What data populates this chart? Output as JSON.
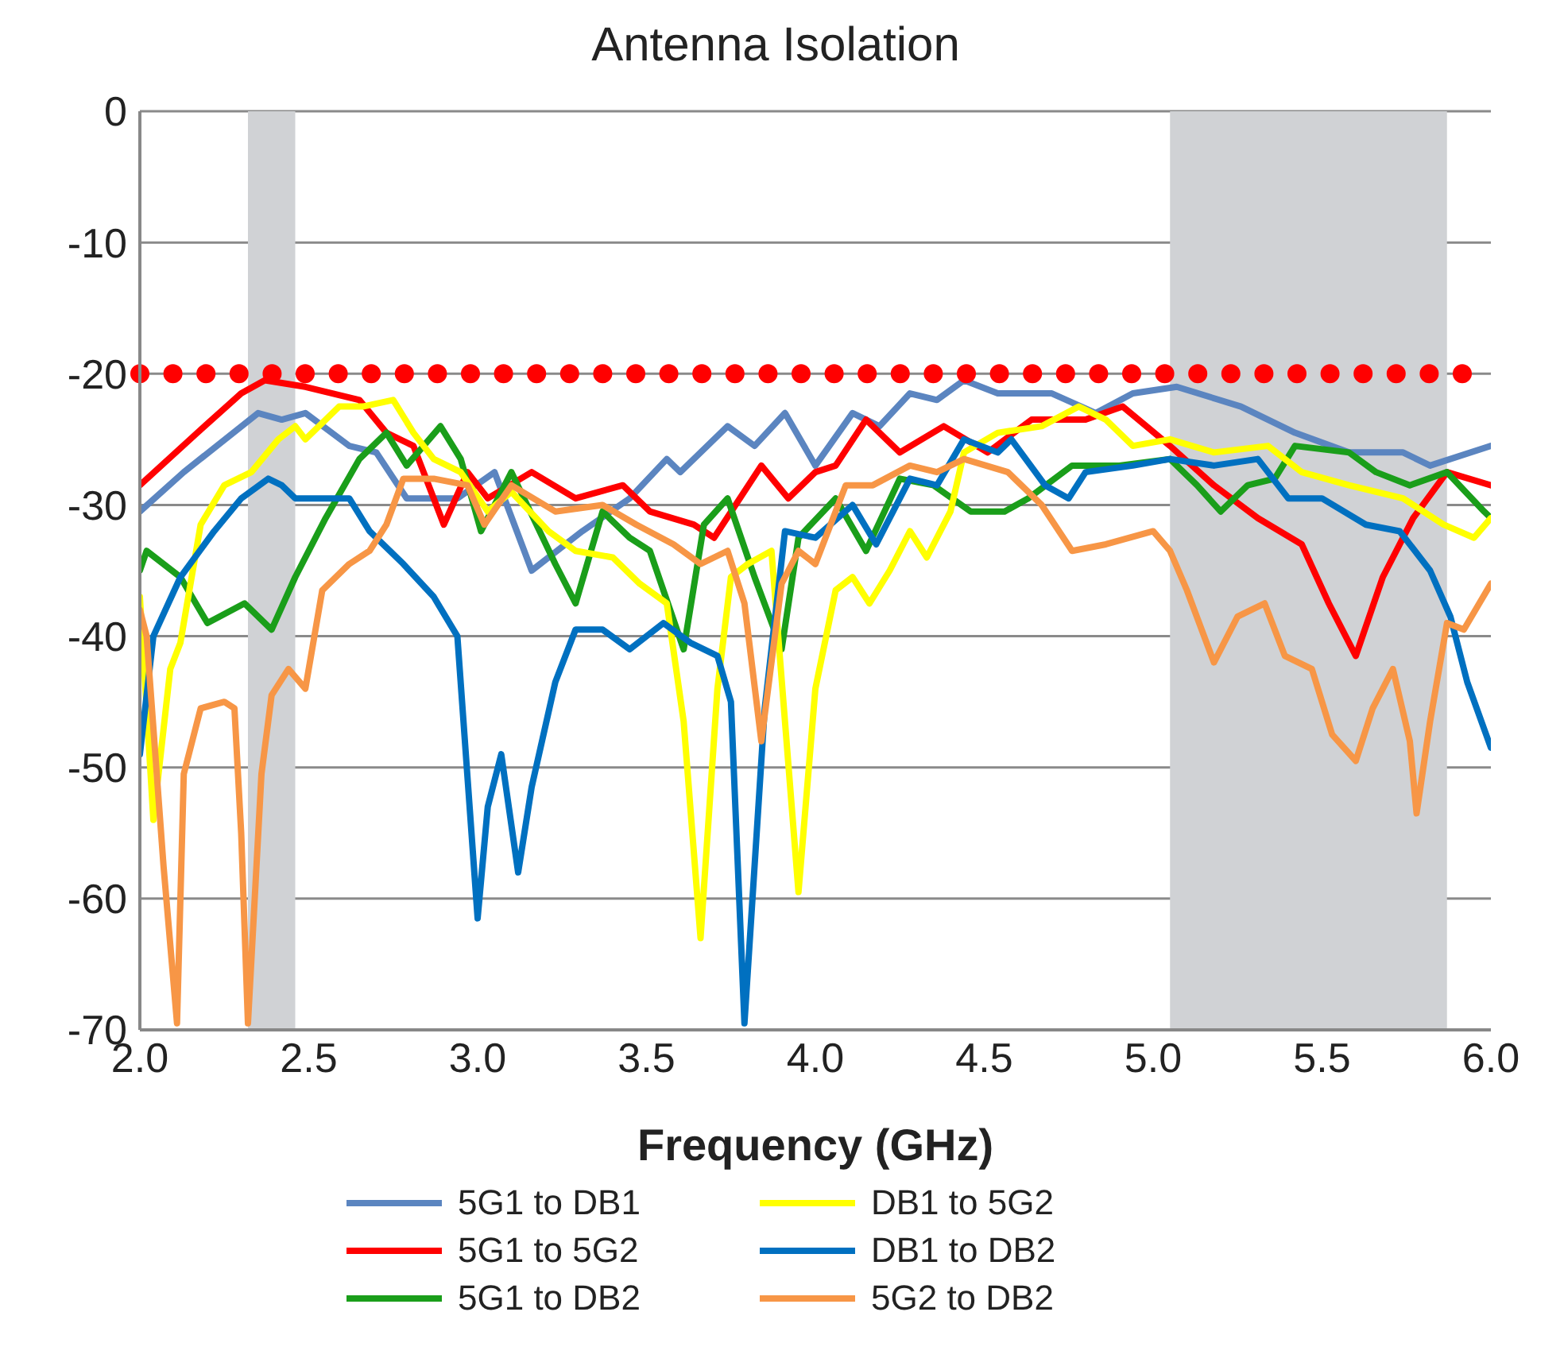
{
  "chart_data": {
    "type": "line",
    "title": "Antenna Isolation",
    "xlabel": "Frequency (GHz)",
    "xlim": [
      2.0,
      6.0
    ],
    "xticks": [
      {
        "value": 2,
        "label": "2.0"
      },
      {
        "value": 2.5,
        "label": "2.5"
      },
      {
        "value": 3,
        "label": "3.0"
      },
      {
        "value": 3.5,
        "label": "3.5"
      },
      {
        "value": 4,
        "label": "4.0"
      },
      {
        "value": 4.5,
        "label": "4.5"
      },
      {
        "value": 5,
        "label": "5.0"
      },
      {
        "value": 5.5,
        "label": "5.5"
      },
      {
        "value": 6,
        "label": "6.0"
      }
    ],
    "ylim": [
      -70,
      0
    ],
    "yticks": [
      -70,
      -60,
      -50,
      -40,
      -30,
      -20,
      -10,
      0
    ],
    "grid": "y",
    "legend": "bottom",
    "marker": "none",
    "line_style": "solid",
    "ref_lines": [
      {
        "axis": "y",
        "value": -20,
        "color": "#ff0000",
        "line_style": "dotted"
      }
    ],
    "bands": [
      {
        "axis": "x",
        "from": 2.32,
        "to": 2.46,
        "color": "#d0d2d5"
      },
      {
        "axis": "x",
        "from": 5.05,
        "to": 5.87,
        "color": "#d0d2d5"
      }
    ],
    "series": [
      {
        "name": "5G1 to DB1",
        "color": "#5b85c0",
        "x": [
          2.0,
          2.13,
          2.35,
          2.42,
          2.49,
          2.62,
          2.7,
          2.79,
          2.94,
          3.05,
          3.16,
          3.31,
          3.45,
          3.56,
          3.6,
          3.74,
          3.82,
          3.91,
          4.0,
          4.11,
          4.19,
          4.28,
          4.36,
          4.44,
          4.54,
          4.7,
          4.83,
          4.94,
          5.07,
          5.26,
          5.42,
          5.58,
          5.74,
          5.82,
          6.0
        ],
        "values": [
          -30.5,
          -27.5,
          -23,
          -23.5,
          -23,
          -25.5,
          -26,
          -29.5,
          -29.5,
          -27.5,
          -35,
          -32,
          -29.5,
          -26.5,
          -27.5,
          -24,
          -25.5,
          -23,
          -27,
          -23,
          -24,
          -21.5,
          -22,
          -20.5,
          -21.5,
          -21.5,
          -23,
          -21.5,
          -21,
          -22.5,
          -24.5,
          -26,
          -26,
          -27,
          -25.5
        ]
      },
      {
        "name": "5G1 to 5G2",
        "color": "#ff0000",
        "x": [
          2.0,
          2.17,
          2.3,
          2.37,
          2.49,
          2.57,
          2.65,
          2.73,
          2.81,
          2.9,
          2.97,
          3.03,
          3.16,
          3.29,
          3.43,
          3.51,
          3.64,
          3.7,
          3.84,
          3.92,
          4.0,
          4.06,
          4.15,
          4.25,
          4.38,
          4.51,
          4.64,
          4.8,
          4.91,
          5.05,
          5.18,
          5.31,
          5.44,
          5.52,
          5.6,
          5.68,
          5.77,
          5.87,
          6.0
        ],
        "values": [
          -28.5,
          -24.5,
          -21.5,
          -20.5,
          -21,
          -21.5,
          -22,
          -24.5,
          -25.5,
          -31.5,
          -27.5,
          -29.5,
          -27.5,
          -29.5,
          -28.5,
          -30.5,
          -31.5,
          -32.5,
          -27,
          -29.5,
          -27.5,
          -27,
          -23.5,
          -26,
          -24,
          -26,
          -23.5,
          -23.5,
          -22.5,
          -25.5,
          -28.5,
          -31,
          -33,
          -37.5,
          -41.5,
          -35.5,
          -31,
          -27.5,
          -28.5
        ]
      },
      {
        "name": "5G1 to DB2",
        "color": "#1a9e1a",
        "x": [
          2.0,
          2.02,
          2.12,
          2.2,
          2.31,
          2.39,
          2.46,
          2.55,
          2.65,
          2.73,
          2.79,
          2.89,
          2.95,
          3.01,
          3.1,
          3.23,
          3.29,
          3.37,
          3.45,
          3.51,
          3.61,
          3.67,
          3.74,
          3.82,
          3.9,
          3.95,
          4.06,
          4.15,
          4.25,
          4.35,
          4.46,
          4.56,
          4.63,
          4.76,
          4.9,
          5.05,
          5.13,
          5.2,
          5.28,
          5.36,
          5.42,
          5.58,
          5.66,
          5.76,
          5.87,
          5.98,
          6.0
        ],
        "values": [
          -35,
          -33.5,
          -35.5,
          -39,
          -37.5,
          -39.5,
          -35.5,
          -31,
          -26.5,
          -24.5,
          -27,
          -24,
          -26.5,
          -32,
          -27.5,
          -34.5,
          -37.5,
          -30.5,
          -32.5,
          -33.5,
          -41,
          -31.5,
          -29.5,
          -35.5,
          -41,
          -32.5,
          -29.5,
          -33.5,
          -28,
          -28.5,
          -30.5,
          -30.5,
          -29.5,
          -27,
          -27,
          -26.5,
          -28.5,
          -30.5,
          -28.5,
          -28,
          -25.5,
          -26,
          -27.5,
          -28.5,
          -27.5,
          -30.5,
          -31
        ]
      },
      {
        "name": "DB1 to 5G2",
        "color": "#ffff00",
        "x": [
          2.0,
          2.04,
          2.09,
          2.12,
          2.18,
          2.25,
          2.33,
          2.41,
          2.46,
          2.49,
          2.59,
          2.66,
          2.75,
          2.81,
          2.87,
          2.95,
          3.03,
          3.1,
          3.21,
          3.29,
          3.4,
          3.48,
          3.56,
          3.61,
          3.66,
          3.71,
          3.75,
          3.8,
          3.87,
          3.95,
          4.0,
          4.06,
          4.11,
          4.16,
          4.22,
          4.28,
          4.33,
          4.4,
          4.44,
          4.54,
          4.67,
          4.78,
          4.86,
          4.94,
          5.05,
          5.18,
          5.34,
          5.44,
          5.58,
          5.74,
          5.86,
          5.95,
          6.0
        ],
        "values": [
          -37,
          -54,
          -42.5,
          -40.5,
          -31.5,
          -28.5,
          -27.5,
          -25,
          -24,
          -25,
          -22.5,
          -22.5,
          -22,
          -24.5,
          -26.5,
          -27.5,
          -30.5,
          -29,
          -32,
          -33.5,
          -34,
          -36,
          -37.5,
          -46.5,
          -63,
          -44,
          -35.5,
          -34.5,
          -33.5,
          -59.5,
          -44,
          -36.5,
          -35.5,
          -37.5,
          -35,
          -32,
          -34,
          -30.5,
          -26,
          -24.5,
          -24,
          -22.5,
          -23.5,
          -25.5,
          -25,
          -26,
          -25.5,
          -27.5,
          -28.5,
          -29.5,
          -31.5,
          -32.5,
          -31
        ]
      },
      {
        "name": "DB1 to DB2",
        "color": "#0070c0",
        "x": [
          2.0,
          2.04,
          2.12,
          2.22,
          2.3,
          2.38,
          2.42,
          2.46,
          2.52,
          2.62,
          2.68,
          2.78,
          2.87,
          2.94,
          3.0,
          3.03,
          3.07,
          3.12,
          3.16,
          3.23,
          3.29,
          3.37,
          3.45,
          3.55,
          3.63,
          3.71,
          3.75,
          3.79,
          3.85,
          3.91,
          4.0,
          4.11,
          4.18,
          4.28,
          4.36,
          4.44,
          4.54,
          4.58,
          4.68,
          4.75,
          4.8,
          4.94,
          5.05,
          5.18,
          5.31,
          5.4,
          5.5,
          5.63,
          5.73,
          5.82,
          5.88,
          5.93,
          6.0
        ],
        "values": [
          -49,
          -40,
          -35.5,
          -32,
          -29.5,
          -28,
          -28.5,
          -29.5,
          -29.5,
          -29.5,
          -32,
          -34.5,
          -37,
          -40,
          -61.5,
          -53,
          -49,
          -58,
          -51.5,
          -43.5,
          -39.5,
          -39.5,
          -41,
          -39,
          -40.5,
          -41.5,
          -45,
          -69.5,
          -45.5,
          -32,
          -32.5,
          -30,
          -33,
          -28,
          -28.5,
          -25,
          -26,
          -25,
          -28.5,
          -29.5,
          -27.5,
          -27,
          -26.5,
          -27,
          -26.5,
          -29.5,
          -29.5,
          -31.5,
          -32,
          -35,
          -38.5,
          -43.5,
          -48.5
        ]
      },
      {
        "name": "5G2 to DB2",
        "color": "#f79646",
        "x": [
          2.0,
          2.02,
          2.07,
          2.11,
          2.13,
          2.18,
          2.25,
          2.28,
          2.3,
          2.32,
          2.36,
          2.39,
          2.44,
          2.49,
          2.54,
          2.62,
          2.68,
          2.73,
          2.78,
          2.87,
          2.97,
          3.02,
          3.1,
          3.23,
          3.37,
          3.47,
          3.58,
          3.66,
          3.74,
          3.79,
          3.84,
          3.9,
          3.95,
          4.0,
          4.09,
          4.17,
          4.28,
          4.36,
          4.44,
          4.57,
          4.67,
          4.76,
          4.86,
          5.0,
          5.05,
          5.1,
          5.18,
          5.25,
          5.33,
          5.39,
          5.47,
          5.53,
          5.6,
          5.65,
          5.71,
          5.76,
          5.78,
          5.82,
          5.87,
          5.92,
          6.0
        ],
        "values": [
          -38,
          -40,
          -57.5,
          -69.5,
          -50.5,
          -45.5,
          -45,
          -45.5,
          -55,
          -69.5,
          -50.5,
          -44.5,
          -42.5,
          -44,
          -36.5,
          -34.5,
          -33.5,
          -31.5,
          -28,
          -28,
          -28.5,
          -31.5,
          -28.5,
          -30.5,
          -30,
          -31.5,
          -33,
          -34.5,
          -33.5,
          -37.5,
          -48,
          -36,
          -33.5,
          -34.5,
          -28.5,
          -28.5,
          -27,
          -27.5,
          -26.5,
          -27.5,
          -30,
          -33.5,
          -33,
          -32,
          -33.5,
          -36.5,
          -42,
          -38.5,
          -37.5,
          -41.5,
          -42.5,
          -47.5,
          -49.5,
          -45.5,
          -42.5,
          -48,
          -53.5,
          -46.5,
          -39,
          -39.5,
          -36
        ]
      }
    ]
  }
}
